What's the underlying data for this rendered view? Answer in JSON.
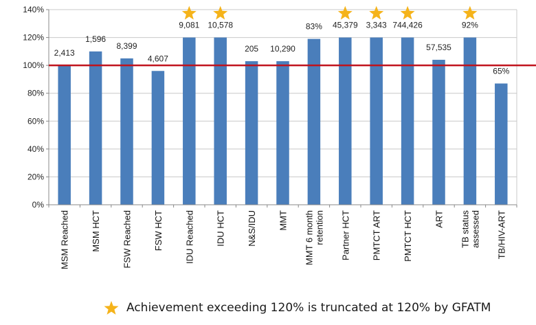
{
  "chart_data": {
    "type": "bar",
    "categories": [
      [
        "MSM Reached"
      ],
      [
        "MSM HCT"
      ],
      [
        "FSW Reached"
      ],
      [
        "FSW HCT"
      ],
      [
        "IDU Reached"
      ],
      [
        "IDU HCT"
      ],
      [
        "N&S/IDU"
      ],
      [
        "MMT"
      ],
      [
        "MMT 6 month",
        "retention"
      ],
      [
        "Partner HCT"
      ],
      [
        "PMTCT ART"
      ],
      [
        "PMTCT HCT"
      ],
      [
        "ART"
      ],
      [
        "TB status",
        "assessed"
      ],
      [
        "TB/HIV-ART"
      ]
    ],
    "values": [
      100,
      110,
      105,
      96,
      120,
      120,
      103,
      103,
      119,
      120,
      120,
      120,
      104,
      120,
      87
    ],
    "data_labels": [
      "2,413",
      "1,596",
      "8,399",
      "4,607",
      "9,081",
      "10,578",
      "205",
      "10,290",
      "83%",
      "45,379",
      "3,343",
      "744,426",
      "57,535",
      "92%",
      "65%"
    ],
    "starred": [
      false,
      false,
      false,
      false,
      true,
      true,
      false,
      false,
      false,
      true,
      true,
      true,
      false,
      true,
      false
    ],
    "y_ticks": [
      "0%",
      "20%",
      "40%",
      "60%",
      "80%",
      "100%",
      "120%",
      "140%"
    ],
    "ylim": [
      0,
      140
    ],
    "reference_line": 100,
    "grid": true,
    "colors": {
      "bar": "#4a7ebb",
      "reference_line": "#c0121c",
      "star": "#f5b31a",
      "grid": "#c8c8c8"
    },
    "legend": {
      "icon": "star-icon",
      "text": "Achievement exceeding 120% is truncated at 120% by GFATM",
      "placement": "bottom"
    }
  }
}
